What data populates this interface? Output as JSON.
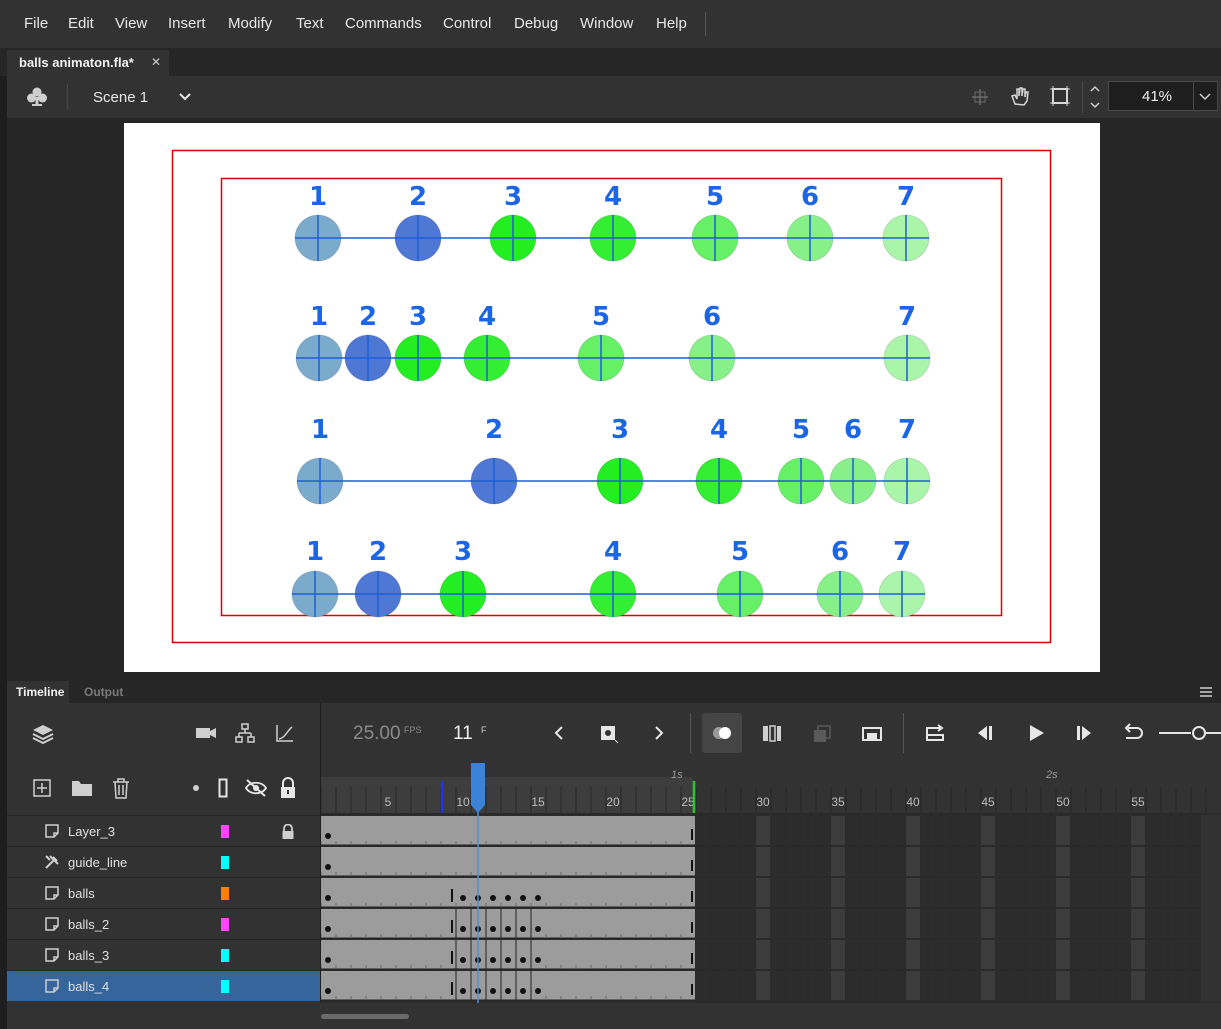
{
  "menu": {
    "items": [
      "File",
      "Edit",
      "View",
      "Insert",
      "Modify",
      "Text",
      "Commands",
      "Control",
      "Debug",
      "Window",
      "Help"
    ],
    "item_x": [
      24,
      68,
      115,
      168,
      228,
      296,
      345,
      443,
      514,
      580,
      656
    ]
  },
  "document": {
    "tab_title": "balls animaton.fla*",
    "close_glyph": "✕"
  },
  "editbar": {
    "scene_label": "Scene 1",
    "zoom_value": "41%"
  },
  "stage": {
    "ball_number_color": "#1a66e6",
    "rows": [
      {
        "labels": [
          "1",
          "2",
          "3",
          "4",
          "5",
          "6",
          "7"
        ]
      },
      {
        "labels": [
          "1",
          "2",
          "3",
          "4",
          "5",
          "6",
          "7"
        ]
      },
      {
        "labels": [
          "1",
          "2",
          "3",
          "4",
          "5",
          "6",
          "7"
        ]
      },
      {
        "labels": [
          "1",
          "2",
          "3",
          "4",
          "5",
          "6",
          "7"
        ]
      }
    ],
    "ball_colors": [
      "#7aaacc",
      "#4f78d4",
      "#22ee22",
      "#33ee33",
      "#66f066",
      "#88f088",
      "#aaf5aa"
    ]
  },
  "timeline": {
    "tab_timeline": "Timeline",
    "tab_output": "Output",
    "fps_value": "25.00",
    "fps_unit": "FPS",
    "current_frame": "11",
    "frame_unit": "F",
    "ruler_numbers": [
      "5",
      "10",
      "15",
      "20",
      "25",
      "30",
      "35",
      "40",
      "45",
      "50",
      "55"
    ],
    "second_markers": [
      "1s",
      "2s"
    ],
    "layers": [
      {
        "name": "Layer_3",
        "color": "#ff44ff",
        "locked": true
      },
      {
        "name": "guide_line",
        "color": "#00ffff",
        "locked": false
      },
      {
        "name": "balls",
        "color": "#ff8000",
        "locked": false
      },
      {
        "name": "balls_2",
        "color": "#ff44ff",
        "locked": false
      },
      {
        "name": "balls_3",
        "color": "#00ffff",
        "locked": false
      },
      {
        "name": "balls_4",
        "color": "#00ffff",
        "locked": false,
        "selected": true
      }
    ]
  }
}
